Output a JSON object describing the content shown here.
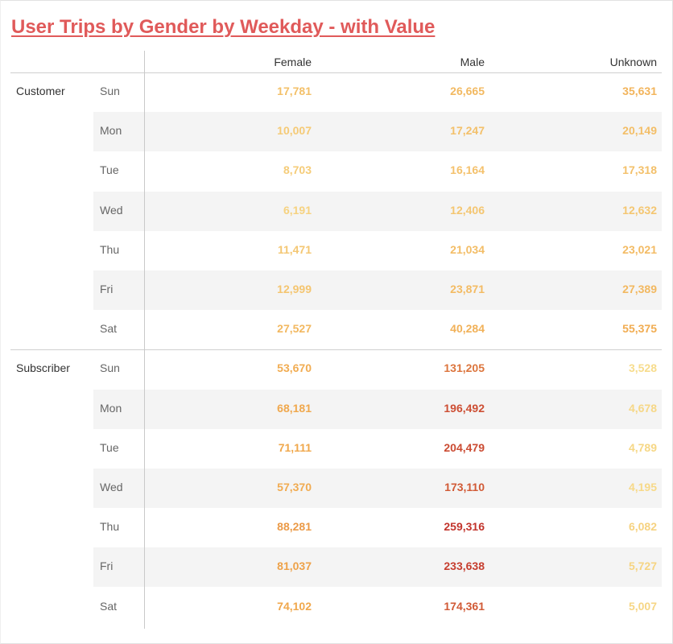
{
  "chart_data": {
    "type": "table",
    "title": "User Trips by Gender by Weekday - with Value",
    "columns": [
      "Female",
      "Male",
      "Unknown"
    ],
    "groups": [
      {
        "name": "Customer",
        "rows": [
          {
            "day": "Sun",
            "values": [
              "17,781",
              "26,665",
              "35,631"
            ]
          },
          {
            "day": "Mon",
            "values": [
              "10,007",
              "17,247",
              "20,149"
            ]
          },
          {
            "day": "Tue",
            "values": [
              "8,703",
              "16,164",
              "17,318"
            ]
          },
          {
            "day": "Wed",
            "values": [
              "6,191",
              "12,406",
              "12,632"
            ]
          },
          {
            "day": "Thu",
            "values": [
              "11,471",
              "21,034",
              "23,021"
            ]
          },
          {
            "day": "Fri",
            "values": [
              "12,999",
              "23,871",
              "27,389"
            ]
          },
          {
            "day": "Sat",
            "values": [
              "27,527",
              "40,284",
              "55,375"
            ]
          }
        ]
      },
      {
        "name": "Subscriber",
        "rows": [
          {
            "day": "Sun",
            "values": [
              "53,670",
              "131,205",
              "3,528"
            ]
          },
          {
            "day": "Mon",
            "values": [
              "68,181",
              "196,492",
              "4,678"
            ]
          },
          {
            "day": "Tue",
            "values": [
              "71,111",
              "204,479",
              "4,789"
            ]
          },
          {
            "day": "Wed",
            "values": [
              "57,370",
              "173,110",
              "4,195"
            ]
          },
          {
            "day": "Thu",
            "values": [
              "88,281",
              "259,316",
              "6,082"
            ]
          },
          {
            "day": "Fri",
            "values": [
              "81,037",
              "233,638",
              "5,727"
            ]
          },
          {
            "day": "Sat",
            "values": [
              "74,102",
              "174,361",
              "5,007"
            ]
          }
        ]
      }
    ],
    "color_scale": {
      "low": "#f7dc8c",
      "mid": "#f0a64a",
      "high": "#c2342c"
    }
  }
}
